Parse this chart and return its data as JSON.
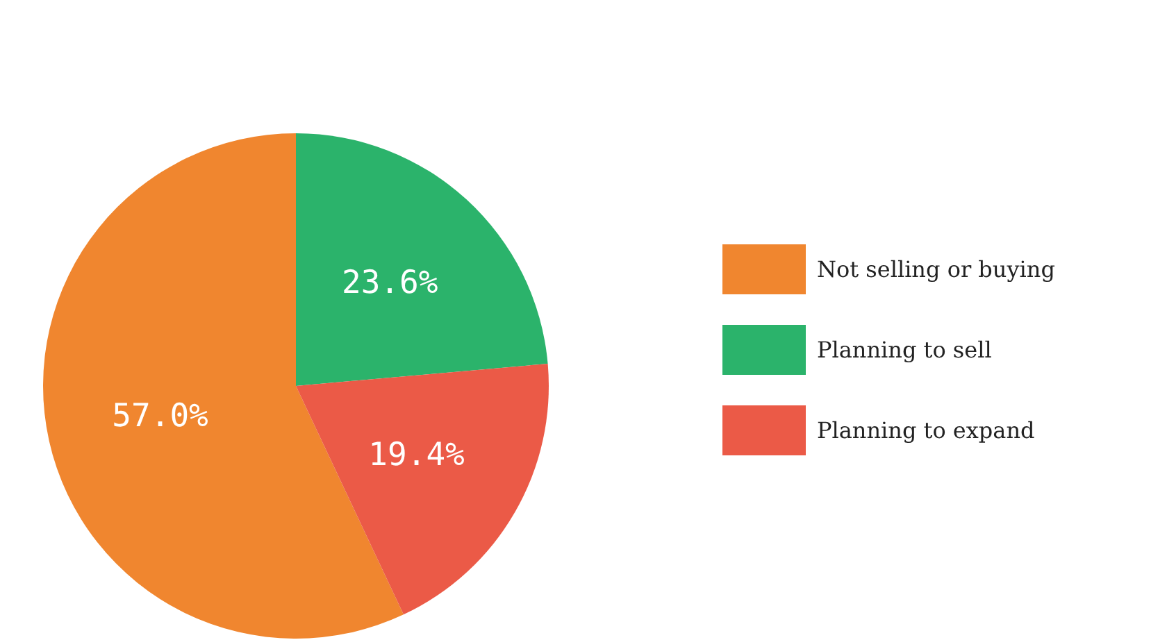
{
  "chart_data": {
    "type": "pie",
    "categories": [
      "Not selling or buying",
      "Planning to sell",
      "Planning to expand"
    ],
    "values": [
      57.0,
      23.6,
      19.4
    ],
    "colors": [
      "#f0862f",
      "#2bb36b",
      "#eb5a47"
    ],
    "value_labels": [
      "57.0%",
      "23.6%",
      "19.4%"
    ],
    "legend": "right"
  }
}
